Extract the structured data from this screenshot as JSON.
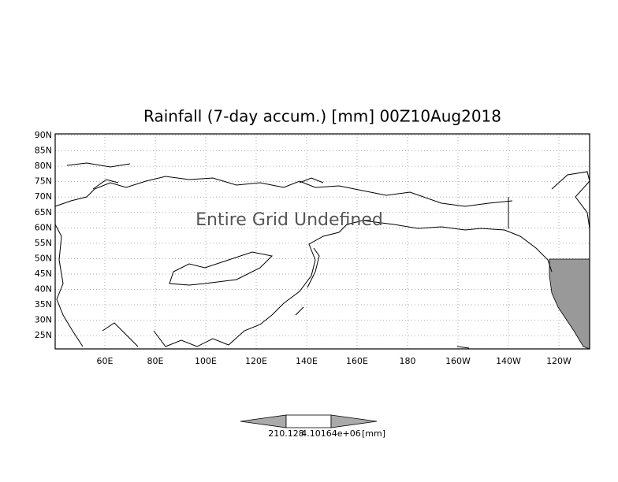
{
  "title": "Rainfall (7-day accum.) [mm] 00Z10Aug2018",
  "lat_labels": [
    "90N",
    "85N",
    "80N",
    "75N",
    "70N",
    "65N",
    "60N",
    "55N",
    "50N",
    "45N",
    "40N",
    "35N",
    "30N",
    "25N"
  ],
  "lon_labels": [
    "60E",
    "80E",
    "100E",
    "120E",
    "140E",
    "160E",
    "180",
    "160W",
    "140W",
    "120W"
  ],
  "message": "Entire Grid Undefined",
  "colorbar": {
    "low_label": "210.128",
    "high_label": "4.10164e+06",
    "unit": "[mm]"
  }
}
